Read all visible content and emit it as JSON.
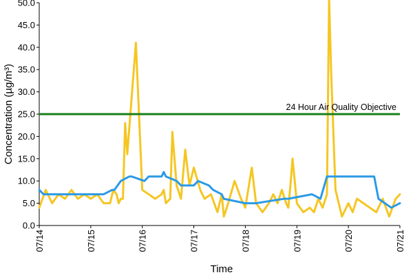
{
  "chart_data": {
    "type": "line",
    "title": "",
    "xlabel": "Time",
    "ylabel": "Concentration (µg/m³)",
    "ylim": [
      0,
      50
    ],
    "xlim": [
      "07/14",
      "07/21"
    ],
    "y_ticks": [
      "0.0",
      "5.0",
      "10.0",
      "15.0",
      "20.0",
      "25.0",
      "30.0",
      "35.0",
      "40.0",
      "45.0",
      "50.0"
    ],
    "x_ticks": [
      "07/14",
      "07/15",
      "07/16",
      "07/17",
      "07/18",
      "07/19",
      "07/20",
      "07/21"
    ],
    "grid": false,
    "legend": "none",
    "reference_line": {
      "label": "24 Hour Air Quality Objective",
      "value": 25,
      "color": "#1a7f1a"
    },
    "series": [
      {
        "color": "#f5c623",
        "x": [
          "07/14 00:00",
          "07/14 03:00",
          "07/14 06:00",
          "07/14 09:00",
          "07/14 12:00",
          "07/14 15:00",
          "07/14 18:00",
          "07/14 21:00",
          "07/15 00:00",
          "07/15 03:00",
          "07/15 06:00",
          "07/15 09:00",
          "07/15 10:30",
          "07/15 12:00",
          "07/15 13:00",
          "07/15 14:00",
          "07/15 15:00",
          "07/15 16:00",
          "07/15 17:00",
          "07/15 21:00",
          "07/16 00:00",
          "07/16 03:00",
          "07/16 06:00",
          "07/16 09:00",
          "07/16 10:00",
          "07/16 11:00",
          "07/16 13:00",
          "07/16 14:00",
          "07/16 16:00",
          "07/16 18:00",
          "07/16 20:00",
          "07/16 22:00",
          "07/17 00:00",
          "07/17 03:00",
          "07/17 05:00",
          "07/17 08:00",
          "07/17 11:00",
          "07/17 13:00",
          "07/17 14:00",
          "07/17 16:00",
          "07/17 19:00",
          "07/17 22:00",
          "07/18 00:00",
          "07/18 03:00",
          "07/18 05:00",
          "07/18 08:00",
          "07/18 11:00",
          "07/18 13:00",
          "07/18 15:00",
          "07/18 17:00",
          "07/18 19:00",
          "07/18 20:00",
          "07/18 21:00",
          "07/18 22:00",
          "07/19 00:00",
          "07/19 03:00",
          "07/19 06:00",
          "07/19 08:00",
          "07/19 10:00",
          "07/19 12:00",
          "07/19 14:00",
          "07/19 15:00",
          "07/19 16:00",
          "07/19 18:00",
          "07/19 21:00",
          "07/20 00:00",
          "07/20 02:00",
          "07/20 04:00",
          "07/20 07:00",
          "07/20 10:00",
          "07/20 13:00",
          "07/20 16:00",
          "07/20 19:00",
          "07/20 22:00",
          "07/21 00:00"
        ],
        "y": [
          4,
          8,
          5,
          7,
          6,
          8,
          6,
          7,
          6,
          7,
          5,
          5,
          8,
          7,
          5,
          6,
          6,
          23,
          16,
          41,
          8,
          7,
          6,
          7,
          8,
          5,
          6,
          21,
          9,
          6,
          17,
          9,
          13,
          8,
          6,
          7,
          3,
          7,
          2,
          5,
          10,
          6,
          4,
          13,
          5,
          3,
          5,
          7,
          5,
          8,
          5,
          4,
          9,
          15,
          5,
          3,
          4,
          3,
          6,
          4,
          7,
          51,
          34,
          8,
          2,
          5,
          3,
          6,
          5,
          4,
          3,
          6,
          2,
          6,
          7
        ]
      },
      {
        "color": "#2b9ae6",
        "x": [
          "07/14 00:00",
          "07/14 02:00",
          "07/15 06:00",
          "07/15 10:00",
          "07/15 11:00",
          "07/15 14:00",
          "07/15 18:00",
          "07/15 19:00",
          "07/16 01:00",
          "07/16 03:00",
          "07/16 09:00",
          "07/16 10:00",
          "07/16 11:00",
          "07/16 16:00",
          "07/16 18:00",
          "07/17 00:00",
          "07/17 02:00",
          "07/17 07:00",
          "07/17 09:00",
          "07/17 13:00",
          "07/17 14:00",
          "07/18 00:00",
          "07/18 05:00",
          "07/18 18:00",
          "07/18 20:00",
          "07/19 07:00",
          "07/19 11:00",
          "07/19 14:00",
          "07/20 12:00",
          "07/20 14:00",
          "07/20 20:00",
          "07/21 00:00"
        ],
        "y": [
          8,
          7,
          7,
          8,
          8,
          10,
          11,
          11,
          10,
          11,
          11,
          12,
          11,
          10,
          9,
          9,
          10,
          9,
          8,
          7,
          6,
          5,
          5,
          6,
          6,
          7,
          6,
          11,
          11,
          6,
          4,
          5
        ]
      }
    ]
  }
}
